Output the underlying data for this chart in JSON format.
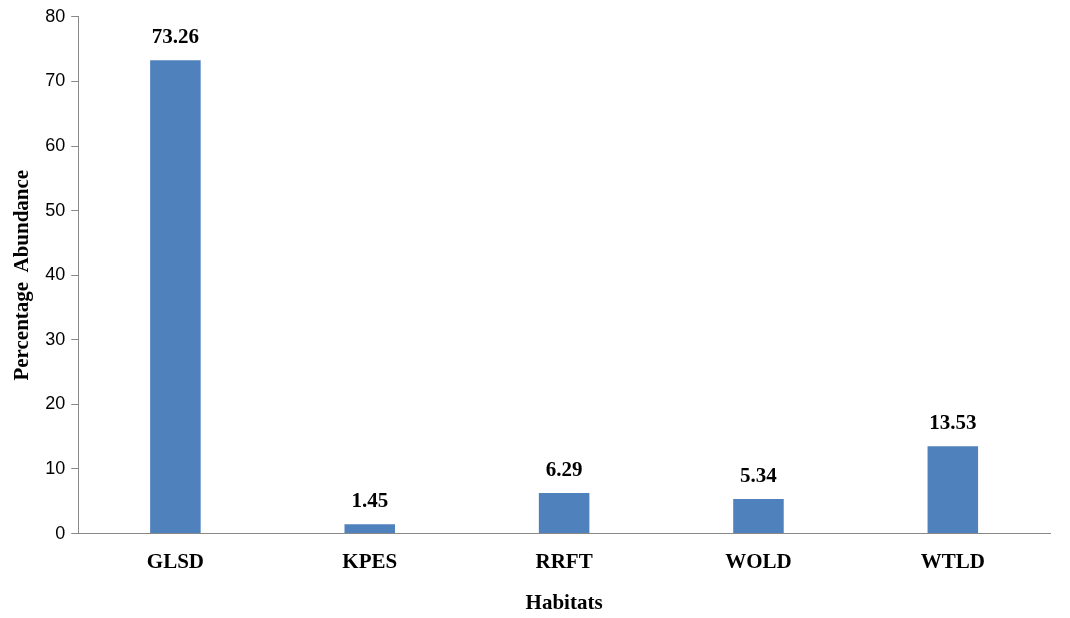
{
  "chart_data": {
    "type": "bar",
    "xlabel": "Habitats",
    "ylabel": "Percentage  Abundance",
    "categories": [
      "GLSD",
      "KPES",
      "RRFT",
      "WOLD",
      "WTLD"
    ],
    "values": [
      73.26,
      1.45,
      6.29,
      5.34,
      13.53
    ],
    "color": "#4f81bd",
    "ylim": [
      0,
      80
    ],
    "yticks": [
      0,
      10,
      20,
      30,
      40,
      50,
      60,
      70,
      80
    ],
    "grid": false,
    "legend": false,
    "data_labels": true
  }
}
